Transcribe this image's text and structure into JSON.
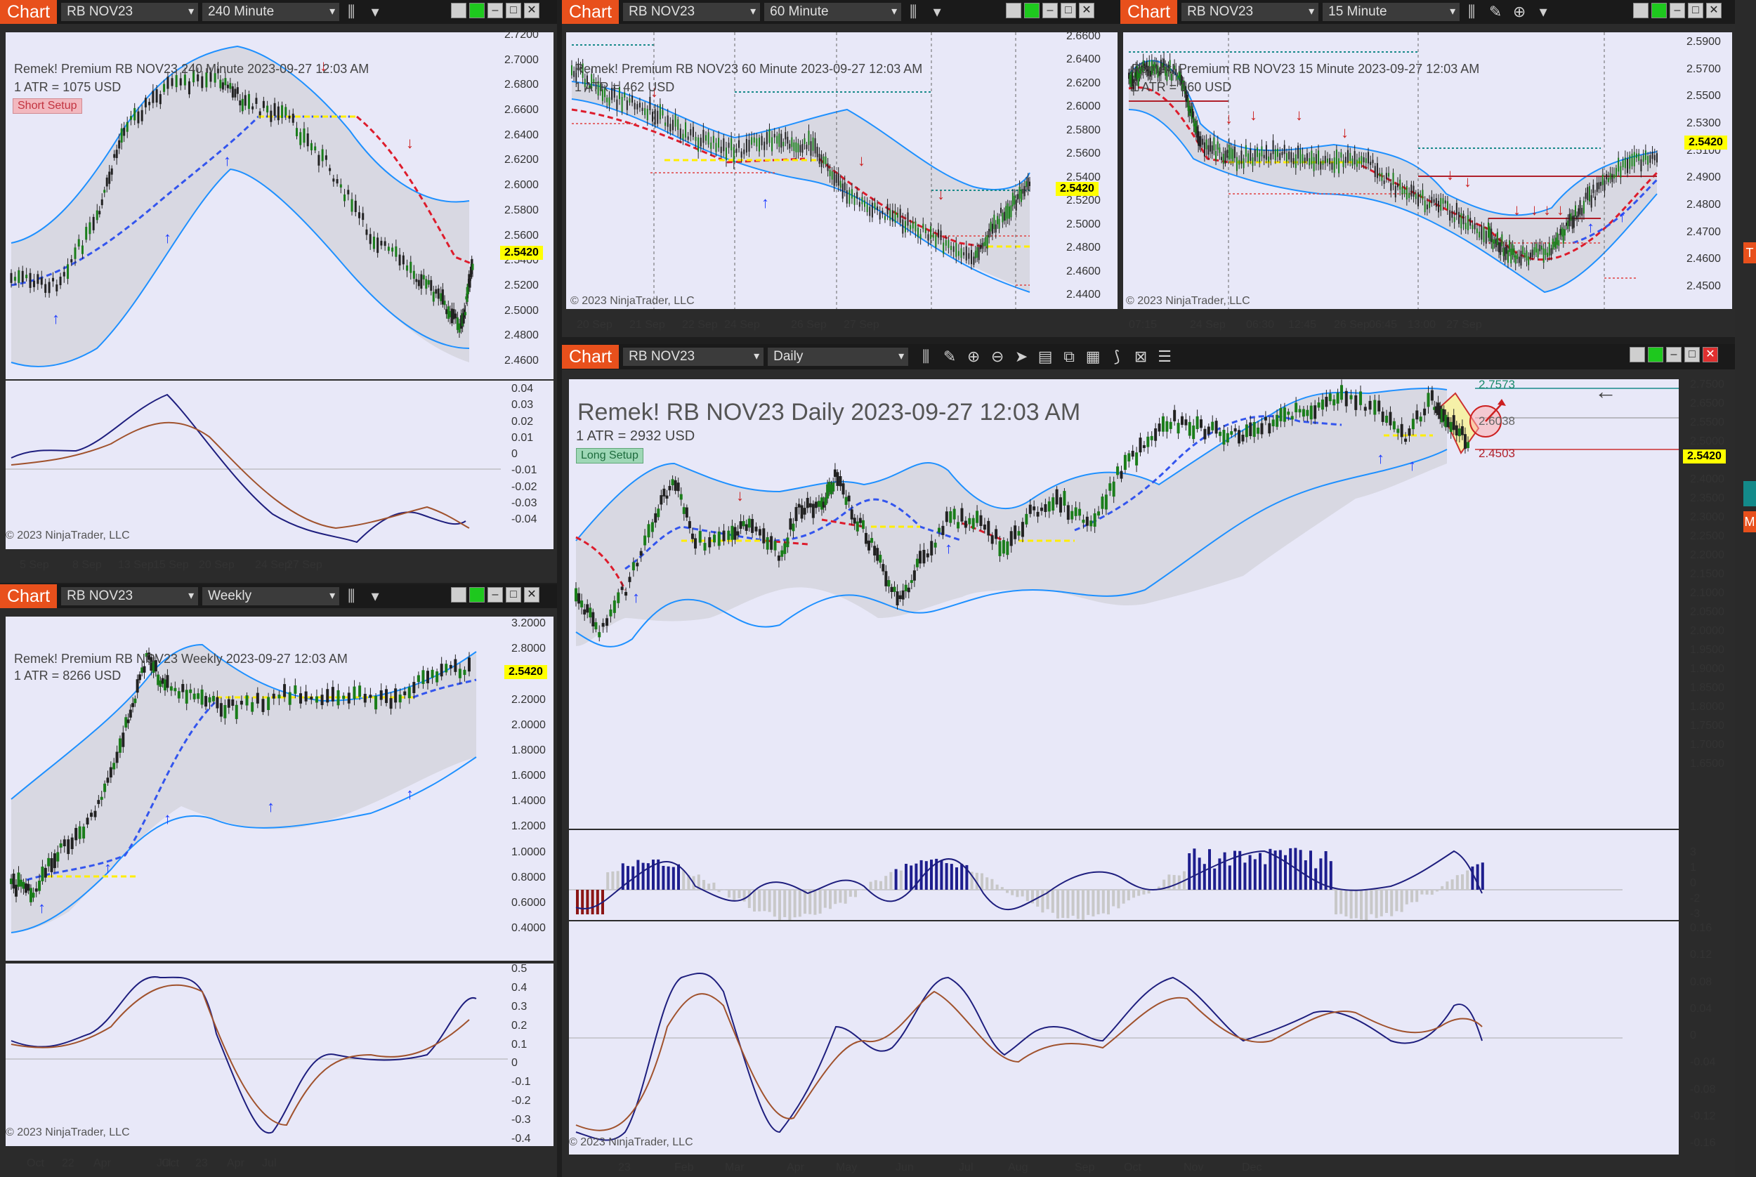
{
  "windows": [
    {
      "id": "w240",
      "chart_label": "Chart",
      "instrument": "RB NOV23",
      "interval": "240 Minute",
      "title": "Remek!  Premium  RB NOV23  240 Minute  2023-09-27 12:03 AM",
      "atr": "1 ATR = 1075 USD",
      "setup": "Short Setup",
      "copyright": "© 2023 NinjaTrader, LLC",
      "price": "2.5420",
      "yticks": [
        "2.7200",
        "2.7000",
        "2.6800",
        "2.6600",
        "2.6400",
        "2.6200",
        "2.6000",
        "2.5800",
        "2.5600",
        "2.5400",
        "2.5200",
        "2.5000",
        "2.4800",
        "2.4600"
      ],
      "osc_ticks": [
        "0.04",
        "0.03",
        "0.02",
        "0.01",
        "0",
        "-0.01",
        "-0.02",
        "-0.03",
        "-0.04"
      ],
      "xticks": [
        "5 Sep",
        "8 Sep",
        "13 Sep",
        "15 Sep",
        "20 Sep",
        "24 Sep",
        "27 Sep"
      ]
    },
    {
      "id": "w60",
      "chart_label": "Chart",
      "instrument": "RB NOV23",
      "interval": "60 Minute",
      "title": "Remek!  Premium  RB NOV23  60 Minute  2023-09-27 12:03 AM",
      "atr": "1 ATR = 462 USD",
      "copyright": "© 2023 NinjaTrader, LLC",
      "price": "2.5420",
      "yticks": [
        "2.6600",
        "2.6400",
        "2.6200",
        "2.6000",
        "2.5800",
        "2.5600",
        "2.5400",
        "2.5200",
        "2.5000",
        "2.4800",
        "2.4600",
        "2.4400"
      ],
      "xticks": [
        "20 Sep",
        "21 Sep",
        "22 Sep",
        "24 Sep",
        "26 Sep",
        "27 Sep"
      ]
    },
    {
      "id": "w15",
      "chart_label": "Chart",
      "instrument": "RB NOV23",
      "interval": "15 Minute",
      "title": "Remek!  Premium  RB NOV23  15 Minute  2023-09-27 12:03 AM",
      "atr": "1 ATR = 160 USD",
      "copyright": "© 2023 NinjaTrader, LLC",
      "price": "2.5420",
      "yticks": [
        "2.5900",
        "2.5700",
        "2.5500",
        "2.5300",
        "2.5100",
        "2.4900",
        "2.4800",
        "2.4700",
        "2.4600",
        "2.4500"
      ],
      "xticks": [
        "07:15",
        "24 Sep",
        "06:30",
        "12:45",
        "26 Sep",
        "06:45",
        "13:00",
        "27 Sep"
      ]
    },
    {
      "id": "wW",
      "chart_label": "Chart",
      "instrument": "RB NOV23",
      "interval": "Weekly",
      "title": "Remek!  Premium  RB NOV23  Weekly  2023-09-27 12:03 AM",
      "atr": "1 ATR = 8266 USD",
      "copyright": "© 2023 NinjaTrader, LLC",
      "price": "2.5420",
      "yticks": [
        "3.2000",
        "2.8000",
        "2.4000",
        "2.2000",
        "2.0000",
        "1.8000",
        "1.6000",
        "1.4000",
        "1.2000",
        "1.0000",
        "0.8000",
        "0.6000",
        "0.4000"
      ],
      "osc_ticks": [
        "0.5",
        "0.4",
        "0.3",
        "0.2",
        "0.1",
        "0",
        "-0.1",
        "-0.2",
        "-0.3",
        "-0.4"
      ],
      "xticks": [
        "Oct",
        "22",
        "Apr",
        "Jul",
        "Oct",
        "23",
        "Apr",
        "Jul"
      ]
    },
    {
      "id": "wD",
      "chart_label": "Chart",
      "instrument": "RB NOV23",
      "interval": "Daily",
      "title": "Remek!  RB NOV23  Daily  2023-09-27 12:03 AM",
      "atr": "1 ATR = 2932 USD",
      "setup": "Long Setup",
      "copyright": "© 2023 NinjaTrader, LLC",
      "price": "2.5420",
      "target_price": "2.7573",
      "mid_price": "2.6038",
      "stop_price": "2.4503",
      "yticks": [
        "2.7500",
        "2.6500",
        "2.5500",
        "2.5000",
        "2.4500",
        "2.4000",
        "2.3500",
        "2.3000",
        "2.2500",
        "2.2000",
        "2.1500",
        "2.1000",
        "2.0500",
        "2.0000",
        "1.9500",
        "1.9000",
        "1.8500",
        "1.8000",
        "1.7500",
        "1.7000",
        "1.6500"
      ],
      "hist_ticks": [
        "3",
        "1",
        "0",
        "-2",
        "-3"
      ],
      "osc_ticks": [
        "0.16",
        "0.12",
        "0.08",
        "0.04",
        "0",
        "-0.04",
        "-0.08",
        "-0.12",
        "-0.16"
      ],
      "xticks": [
        "23",
        "Feb",
        "Mar",
        "Apr",
        "May",
        "Jun",
        "Jul",
        "Aug",
        "Sep",
        "Oct",
        "Nov",
        "Dec"
      ]
    }
  ],
  "right_edge": {
    "t_label": "T",
    "m_label": "M"
  },
  "colors": {
    "pane_bg": "#e8e8f8",
    "chart_btn": "#e8501c",
    "band": "#1e90ff",
    "up_arrow": "#1e3cff",
    "down_arrow": "#cc1f1f"
  }
}
